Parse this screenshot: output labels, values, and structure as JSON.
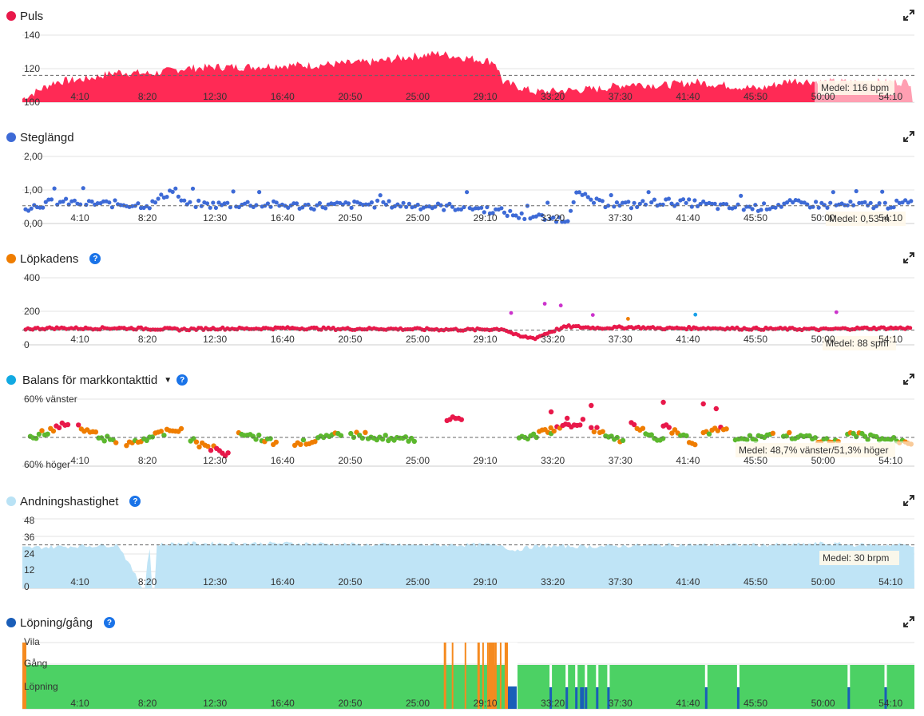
{
  "x_tick_labels": [
    "4:10",
    "8:20",
    "12:30",
    "16:40",
    "20:50",
    "25:00",
    "29:10",
    "33:20",
    "37:30",
    "41:40",
    "45:50",
    "50:00",
    "54:10"
  ],
  "panels": {
    "puls": {
      "title": "Puls",
      "color": "#e8184a",
      "has_help": false,
      "has_caret": false,
      "ylabels": [
        "140",
        "120",
        "100"
      ],
      "avg_label": "Medel: 116 bpm"
    },
    "steg": {
      "title": "Steglängd",
      "color": "#3d6ad6",
      "has_help": false,
      "has_caret": false,
      "ylabels": [
        "2,00",
        "1,00",
        "0,00"
      ],
      "avg_label": "Medel: 0,53 m"
    },
    "kadens": {
      "title": "Löpkadens",
      "color": "#ef7d00",
      "has_help": true,
      "has_caret": false,
      "ylabels": [
        "400",
        "200",
        "0"
      ],
      "avg_label": "Medel: 88 spm"
    },
    "balans": {
      "title": "Balans för markkontakttid",
      "color": "#11a9e2",
      "has_help": true,
      "has_caret": true,
      "ylabels": [
        "60% vänster",
        "60% höger"
      ],
      "avg_label": "Medel: 48,7% vänster/51,3% höger"
    },
    "andning": {
      "title": "Andningshastighet",
      "color": "#b9e2f5",
      "has_help": true,
      "has_caret": false,
      "ylabels": [
        "48",
        "36",
        "24",
        "12",
        "0"
      ],
      "avg_label": "Medel: 30 brpm"
    },
    "lopning": {
      "title": "Löpning/gång",
      "color": "#1a5eb8",
      "has_help": true,
      "has_caret": false,
      "ylabels": [
        "Vila",
        "Gång",
        "Löpning"
      ]
    }
  },
  "chart_data": [
    {
      "type": "area",
      "title": "Puls",
      "x_unit": "min:s",
      "x_range": [
        "0:00",
        "55:40"
      ],
      "ylim": [
        100,
        140
      ],
      "average": 116,
      "unit": "bpm",
      "x_minutes": [
        0,
        2,
        4,
        6,
        8,
        10,
        12,
        14,
        16,
        18,
        20,
        22,
        24,
        26,
        28,
        29.5,
        30,
        32,
        34,
        36,
        38,
        40,
        42,
        44,
        46,
        48,
        50,
        52,
        54,
        55.5
      ],
      "values": [
        102,
        112,
        114,
        118,
        117,
        120,
        121,
        121,
        122,
        122,
        123,
        124,
        127,
        129,
        126,
        124,
        112,
        106,
        107,
        108,
        111,
        110,
        112,
        110,
        108,
        113,
        112,
        112,
        112,
        112
      ],
      "series_color": "#ff2a55"
    },
    {
      "type": "scatter",
      "title": "Steglängd",
      "ylim": [
        0,
        2
      ],
      "average": 0.53,
      "unit": "m",
      "x_minutes": [
        0,
        2,
        4,
        6,
        8,
        9.5,
        10,
        12,
        14,
        16,
        18,
        20,
        22,
        24,
        26,
        28,
        30,
        31,
        32,
        33,
        34,
        34.5,
        36,
        38,
        40,
        42,
        44,
        46,
        48,
        50,
        52,
        54,
        55.5
      ],
      "values": [
        0.45,
        0.65,
        0.6,
        0.58,
        0.55,
        1.05,
        0.6,
        0.55,
        0.58,
        0.55,
        0.52,
        0.55,
        0.58,
        0.55,
        0.5,
        0.48,
        0.35,
        0.22,
        0.2,
        0.15,
        0.1,
        0.9,
        0.6,
        0.55,
        0.65,
        0.6,
        0.48,
        0.48,
        0.6,
        0.55,
        0.55,
        0.55,
        0.62
      ],
      "series_color": "#3d6ad6"
    },
    {
      "type": "scatter",
      "title": "Löpkadens",
      "ylim": [
        0,
        400
      ],
      "average": 88,
      "unit": "spm",
      "x_minutes": [
        0,
        2,
        4,
        6,
        8,
        10,
        12,
        14,
        16,
        18,
        20,
        22,
        24,
        26,
        28,
        30,
        31,
        32,
        33,
        34,
        36,
        38,
        40,
        42,
        44,
        46,
        48,
        50,
        52,
        54,
        55.5
      ],
      "values": [
        95,
        100,
        98,
        100,
        96,
        92,
        98,
        96,
        100,
        98,
        95,
        96,
        94,
        92,
        90,
        95,
        50,
        40,
        80,
        110,
        100,
        105,
        98,
        100,
        98,
        96,
        95,
        92,
        98,
        100,
        100
      ],
      "outliers": [
        {
          "x": 30.5,
          "y": 190,
          "color": "#cc33cc"
        },
        {
          "x": 32.6,
          "y": 245,
          "color": "#cc33cc"
        },
        {
          "x": 33.6,
          "y": 235,
          "color": "#cc33cc"
        },
        {
          "x": 35.6,
          "y": 178,
          "color": "#cc33cc"
        },
        {
          "x": 42,
          "y": 180,
          "color": "#1aa0e8"
        },
        {
          "x": 37.8,
          "y": 155,
          "color": "#ef7d00"
        },
        {
          "x": 50.8,
          "y": 195,
          "color": "#cc33cc"
        }
      ],
      "series_color": "#e8184a"
    },
    {
      "type": "scatter",
      "title": "Balans för markkontakttid",
      "ylim": [
        "60% höger",
        "60% vänster"
      ],
      "average_label": "48,7% vänster/51,3% höger",
      "series_colors": {
        "left_high": "#e8184a",
        "balanced": "#5cb82e",
        "mid": "#ef7d00"
      }
    },
    {
      "type": "area",
      "title": "Andningshastighet",
      "ylim": [
        0,
        48
      ],
      "average": 30,
      "unit": "brpm",
      "x_minutes": [
        0,
        3,
        6,
        7.5,
        8,
        10,
        14,
        18,
        22,
        26,
        30,
        30.5,
        32,
        36,
        40,
        44,
        48,
        50,
        52,
        55.5
      ],
      "values": [
        28,
        29,
        30,
        0,
        30,
        31,
        31,
        31,
        30,
        30,
        30,
        26,
        29,
        29,
        30,
        30,
        30,
        31,
        30,
        30
      ],
      "series_color": "#bfe4f6"
    },
    {
      "type": "bar",
      "title": "Löpning/gång",
      "categories": [
        "Vila",
        "Gång",
        "Löpning"
      ],
      "series_colors": {
        "Löpning": "#4cd164",
        "Gång": "#f58a1f",
        "Vila": "#1a5eb8"
      }
    }
  ]
}
